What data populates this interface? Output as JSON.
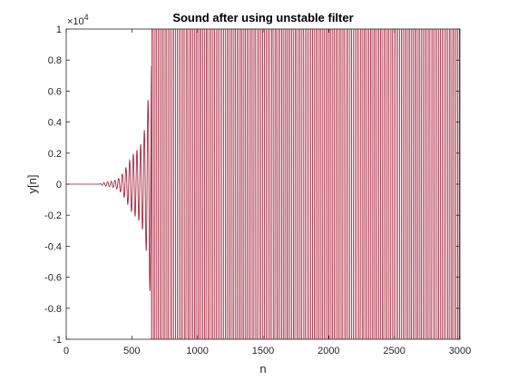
{
  "chart_data": {
    "type": "line",
    "title": "Sound after using unstable filter",
    "xlabel": "n",
    "ylabel": "y[n]",
    "xlim": [
      0,
      3000
    ],
    "ylim": [
      -1,
      1
    ],
    "y_scale_multiplier": "×10",
    "y_scale_exponent": "4",
    "x_ticks": [
      0,
      500,
      1000,
      1500,
      2000,
      2500,
      3000
    ],
    "x_tick_labels": [
      "0",
      "500",
      "1000",
      "1500",
      "2000",
      "2500",
      "3000"
    ],
    "y_ticks": [
      -1,
      -0.8,
      -0.6,
      -0.4,
      -0.2,
      0,
      0.2,
      0.4,
      0.6,
      0.8,
      1
    ],
    "y_tick_labels": [
      "-1",
      "-0.8",
      "-0.6",
      "-0.4",
      "-0.2",
      "0",
      "0.2",
      "0.4",
      "0.6",
      "0.8",
      "1"
    ],
    "grid": false,
    "box": true,
    "series": [
      {
        "color": "#a2142f",
        "n_points": 3000,
        "quiet_until": 250,
        "growth_rate": 0.01,
        "clip_reached_at": 650,
        "oscillation_period": 28,
        "envelope_samples": [
          {
            "n": 250,
            "amplitude": 0.0
          },
          {
            "n": 400,
            "amplitude": 0.05
          },
          {
            "n": 500,
            "amplitude": 0.2
          },
          {
            "n": 600,
            "amplitude": 0.6
          },
          {
            "n": 650,
            "amplitude": 1.0
          },
          {
            "n": 3000,
            "amplitude": 1.0
          }
        ]
      }
    ]
  }
}
